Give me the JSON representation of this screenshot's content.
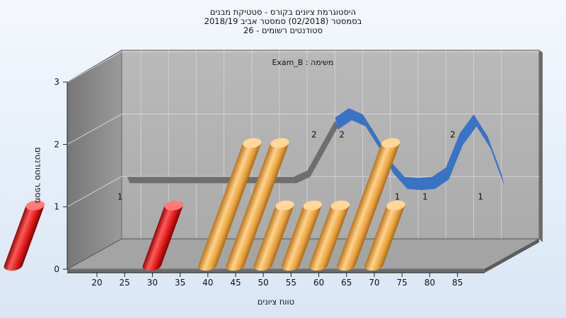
{
  "chart_data": {
    "type": "bar",
    "title_lines": [
      "היסטוגרמת ציונים בקורס - סטטיקת מבנים",
      "בסמסטר  (02/2018)  סמסטר אביב 2018/19",
      "סטודנטים רשומים - 26"
    ],
    "annotation": "משימה : Exam_B",
    "xlabel": "טווח ציונים",
    "ylabel": "מספר סטודנטים",
    "ylim": [
      0,
      3
    ],
    "y_ticks": [
      0,
      1,
      2,
      3
    ],
    "x_ticks": [
      20,
      25,
      30,
      35,
      40,
      45,
      50,
      55,
      60,
      65,
      70,
      75,
      80,
      85
    ],
    "bars": [
      {
        "x": 22.5,
        "value": 1,
        "label": "1",
        "color": "red"
      },
      {
        "x": 47.5,
        "value": 1,
        "label": "1",
        "color": "red"
      },
      {
        "x": 57.5,
        "value": 2,
        "label": "2",
        "color": "orange"
      },
      {
        "x": 62.5,
        "value": 2,
        "label": "2",
        "color": "orange"
      },
      {
        "x": 67.5,
        "value": 1,
        "label": "1",
        "color": "orange"
      },
      {
        "x": 72.5,
        "value": 1,
        "label": "1",
        "color": "orange"
      },
      {
        "x": 77.5,
        "value": 1,
        "label": "1",
        "color": "orange"
      },
      {
        "x": 82.5,
        "value": 2,
        "label": "2",
        "color": "orange"
      },
      {
        "x": 87.5,
        "value": 1,
        "label": "1",
        "color": "orange"
      }
    ],
    "trend_line": {
      "gray_x": [
        22.5,
        52.5,
        55,
        57.5,
        60
      ],
      "gray_y": [
        1.3,
        1.3,
        1.4,
        1.8,
        2.2
      ],
      "blue_x": [
        60,
        62.5,
        65,
        67.5,
        70,
        72.5,
        75,
        77.5,
        80,
        82.5,
        85,
        87.5,
        90
      ],
      "blue_y": [
        2.25,
        2.4,
        2.3,
        1.95,
        1.55,
        1.3,
        1.28,
        1.3,
        1.45,
        2.0,
        2.3,
        1.95,
        1.35
      ]
    },
    "colors": {
      "red": "#e01818",
      "orange": "#e8a23c",
      "blue": "#3a72c4",
      "gray_line": "#6e6e6e",
      "back_wall": "#b3b3b3",
      "side_wall": "#8a8a8a",
      "floor": "#a8a8a8"
    },
    "grid": true
  }
}
